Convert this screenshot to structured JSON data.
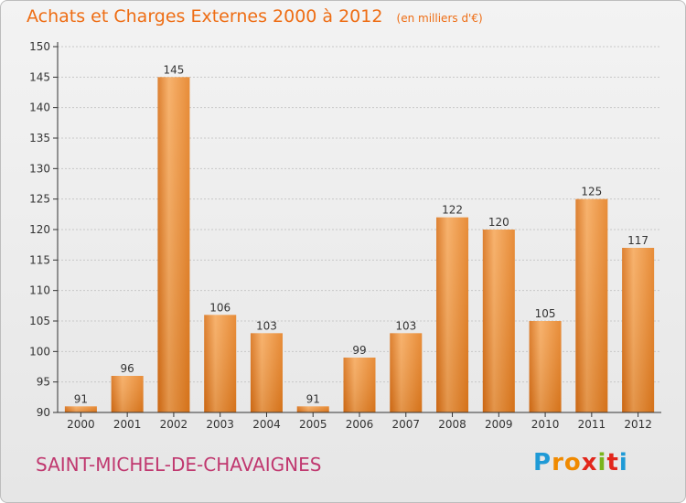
{
  "title": "Achats et Charges Externes 2000 à 2012",
  "unit": "(en milliers d'€)",
  "commune": "SAINT-MICHEL-DE-CHAVAIGNES",
  "brand": {
    "letters": [
      "P",
      "r",
      "o",
      "x",
      "i",
      "t",
      "i"
    ],
    "colors": [
      "#1f9ad6",
      "#f08a00",
      "#f08a00",
      "#e2261b",
      "#7ab51d",
      "#e2261b",
      "#1f9ad6"
    ]
  },
  "colors": {
    "bar": "#ee8a2c",
    "title": "#ee6d14",
    "commune": "#c0386f"
  },
  "chart_data": {
    "type": "bar",
    "categories": [
      "2000",
      "2001",
      "2002",
      "2003",
      "2004",
      "2005",
      "2006",
      "2007",
      "2008",
      "2009",
      "2010",
      "2011",
      "2012"
    ],
    "values": [
      91,
      96,
      145,
      106,
      103,
      91,
      99,
      103,
      122,
      120,
      105,
      125,
      117
    ],
    "data_labels": [
      "91",
      "96",
      "145",
      "106",
      "103",
      "91",
      "99",
      "103",
      "122",
      "120",
      "105",
      "125",
      "117"
    ],
    "yticks": [
      90,
      95,
      100,
      105,
      110,
      115,
      120,
      125,
      130,
      135,
      140,
      145,
      150
    ],
    "ylim": [
      90,
      150
    ],
    "grid": true,
    "title": "Achats et Charges Externes 2000 à 2012"
  }
}
